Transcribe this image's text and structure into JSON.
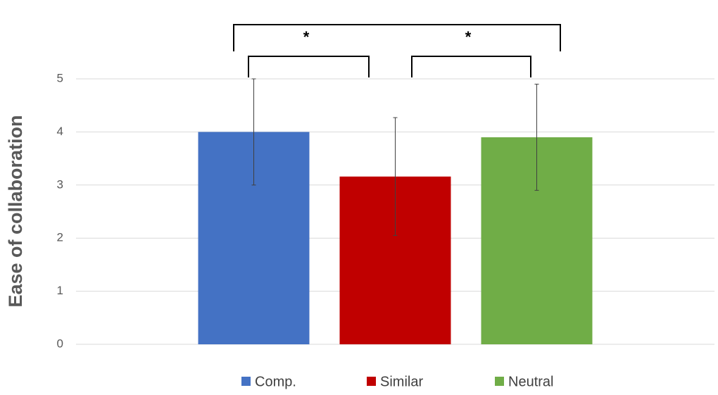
{
  "chart_data": {
    "type": "bar",
    "y_label": "Ease of collaboration",
    "categories": [
      "Comp.",
      "Similar",
      "Neutral"
    ],
    "series": [
      {
        "name": "Comp.",
        "color": "#4472c4"
      },
      {
        "name": "Similar",
        "color": "#c00000"
      },
      {
        "name": "Neutral",
        "color": "#70ad47"
      }
    ],
    "values": [
      4.0,
      3.16,
      3.9
    ],
    "errors": [
      1.0,
      1.11,
      1.0
    ],
    "ylim": [
      0,
      5
    ],
    "yticks": [
      0,
      1,
      2,
      3,
      4,
      5
    ],
    "grid": true,
    "legend": "bottom",
    "annotations": [
      "*",
      "*"
    ]
  }
}
